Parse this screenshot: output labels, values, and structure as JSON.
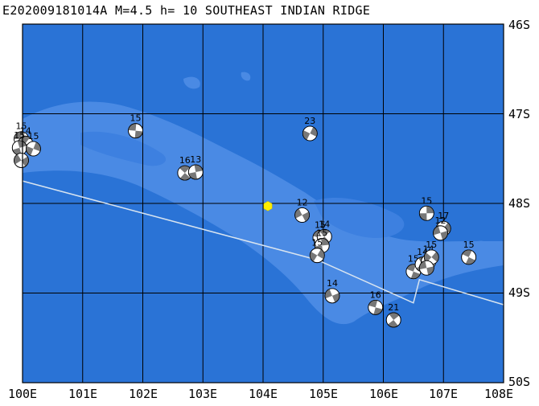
{
  "title": "E202009181014A M=4.5 h= 10 SOUTHEAST INDIAN RIDGE",
  "lat_labels": [
    "46S",
    "47S",
    "48S",
    "49S",
    "50S"
  ],
  "lon_labels": [
    "100E",
    "101E",
    "102E",
    "103E",
    "104E",
    "105E",
    "106E",
    "107E",
    "108E"
  ],
  "colors": {
    "ocean": "#2a73d6",
    "ridge": "#4a8ae4",
    "grid": "#000000",
    "plate_boundary": "#d8e4f0",
    "epicenter": "#ffee00",
    "mechanism_shade": "#777777"
  },
  "epicenter": {
    "lon": 104.08,
    "lat": 48.03,
    "icon": "yellow-hexagon"
  },
  "plate_boundary": [
    [
      100.0,
      47.75
    ],
    [
      104.9,
      48.63
    ],
    [
      106.5,
      49.11
    ],
    [
      106.6,
      48.85
    ],
    [
      108.0,
      49.13
    ]
  ],
  "mechanisms": [
    {
      "lon": 99.98,
      "lat": 47.28,
      "mag": "15"
    },
    {
      "lon": 100.05,
      "lat": 47.33,
      "mag": "14"
    },
    {
      "lon": 99.95,
      "lat": 47.38,
      "mag": "15"
    },
    {
      "lon": 100.18,
      "lat": 47.39,
      "mag": "15"
    },
    {
      "lon": 99.98,
      "lat": 47.52,
      "mag": ""
    },
    {
      "lon": 101.88,
      "lat": 47.19,
      "mag": "15"
    },
    {
      "lon": 102.7,
      "lat": 47.66,
      "mag": "16"
    },
    {
      "lon": 102.88,
      "lat": 47.65,
      "mag": "13"
    },
    {
      "lon": 104.78,
      "lat": 47.22,
      "mag": "23"
    },
    {
      "lon": 104.65,
      "lat": 48.13,
      "mag": "12"
    },
    {
      "lon": 104.95,
      "lat": 48.38,
      "mag": "15"
    },
    {
      "lon": 105.02,
      "lat": 48.37,
      "mag": "14"
    },
    {
      "lon": 104.98,
      "lat": 48.47,
      "mag": "15"
    },
    {
      "lon": 104.9,
      "lat": 48.58,
      "mag": "15"
    },
    {
      "lon": 105.15,
      "lat": 49.03,
      "mag": "14"
    },
    {
      "lon": 105.87,
      "lat": 49.16,
      "mag": "16"
    },
    {
      "lon": 106.17,
      "lat": 49.3,
      "mag": "21"
    },
    {
      "lon": 106.72,
      "lat": 48.11,
      "mag": "15"
    },
    {
      "lon": 107.0,
      "lat": 48.28,
      "mag": "17"
    },
    {
      "lon": 106.95,
      "lat": 48.33,
      "mag": "12"
    },
    {
      "lon": 106.5,
      "lat": 48.76,
      "mag": "15"
    },
    {
      "lon": 106.65,
      "lat": 48.68,
      "mag": "14"
    },
    {
      "lon": 106.75,
      "lat": 48.65,
      "mag": "14"
    },
    {
      "lon": 106.8,
      "lat": 48.6,
      "mag": "15"
    },
    {
      "lon": 106.72,
      "lat": 48.72,
      "mag": ""
    },
    {
      "lon": 107.42,
      "lat": 48.6,
      "mag": "15"
    }
  ]
}
